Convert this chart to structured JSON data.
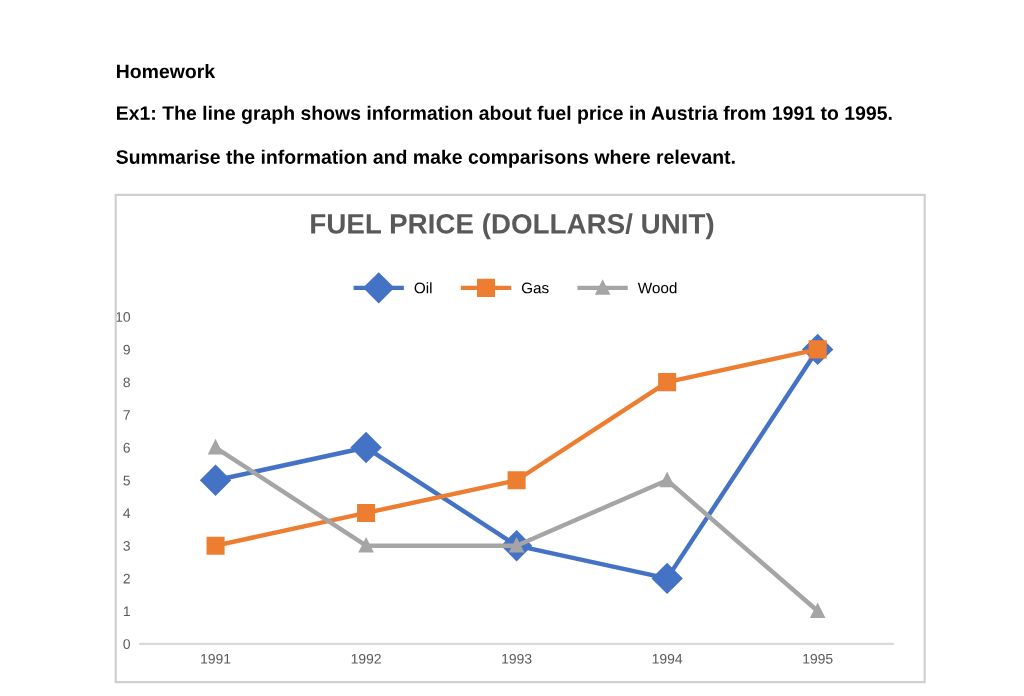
{
  "chart_data": {
    "type": "line",
    "title": "FUEL PRICE (DOLLARS/ UNIT)",
    "annotations": [
      "Homework",
      "Ex1: The line graph shows information about fuel price in Austria from 1991 to 1995.",
      "Summarise the information and make comparisons where relevant."
    ],
    "categories": [
      "1991",
      "1992",
      "1993",
      "1994",
      "1995"
    ],
    "series": [
      {
        "name": "Oil",
        "color": "#4472c4",
        "marker": "diamond",
        "values": [
          5,
          6,
          3,
          2,
          9
        ]
      },
      {
        "name": "Gas",
        "color": "#ed7d31",
        "marker": "square",
        "values": [
          3,
          4,
          5,
          8,
          9
        ]
      },
      {
        "name": "Wood",
        "color": "#a5a5a5",
        "marker": "triangle",
        "values": [
          6,
          3,
          3,
          5,
          1
        ]
      }
    ],
    "ylim": [
      0,
      10
    ],
    "yticks": [
      0,
      1,
      2,
      3,
      4,
      5,
      6,
      7,
      8,
      9,
      10
    ],
    "grid": false,
    "legend": "top"
  }
}
